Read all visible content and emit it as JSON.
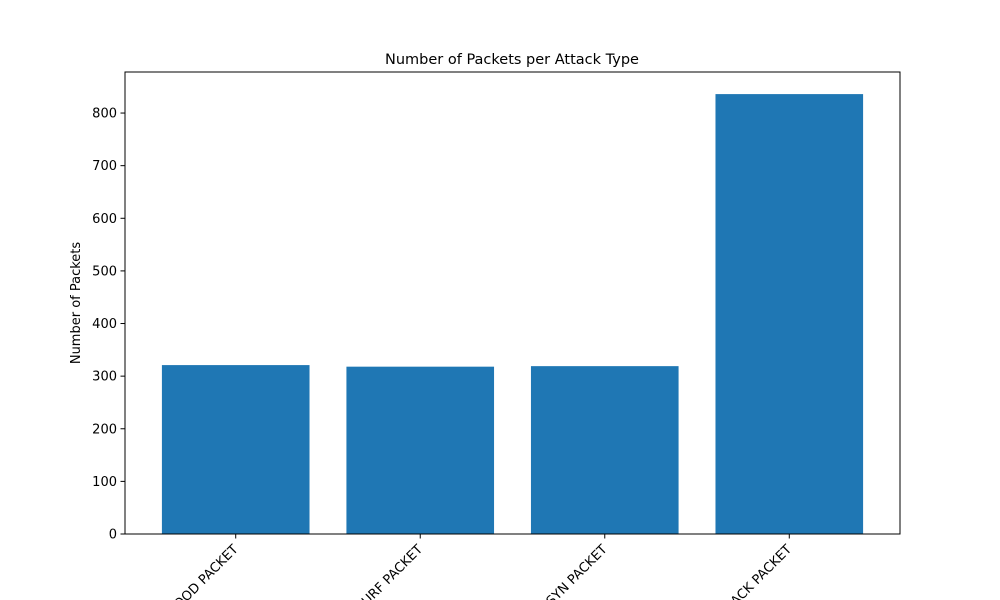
{
  "chart_data": {
    "type": "bar",
    "title": "Number of Packets per Attack Type",
    "xlabel": "",
    "ylabel": "Number of Packets",
    "categories": [
      "FLOOD PACKET",
      "SMURF PACKET",
      "SYN PACKET",
      "ACK PACKET"
    ],
    "values": [
      321,
      318,
      319,
      836
    ],
    "ylim": [
      0,
      878
    ],
    "yticks": [
      0,
      100,
      200,
      300,
      400,
      500,
      600,
      700,
      800
    ],
    "xtick_rotation_deg": 45,
    "grid": false,
    "legend": "none",
    "bar_color": "#1f77b4"
  }
}
